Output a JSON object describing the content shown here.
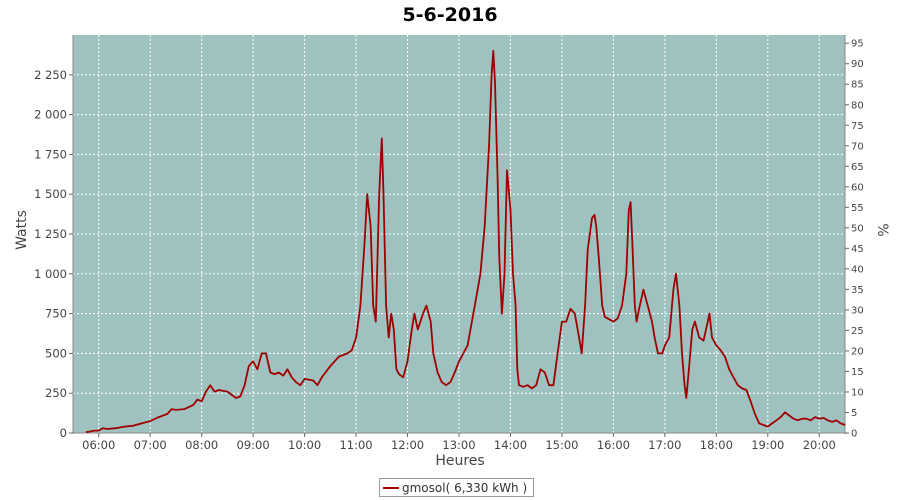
{
  "chart_data": {
    "type": "line",
    "title": "5-6-2016",
    "xlabel": "Heures",
    "ylabel": "Watts",
    "y2label": "%",
    "xlim": [
      "05:30",
      "20:30"
    ],
    "ylim": [
      0,
      2500
    ],
    "y2lim": [
      0,
      97
    ],
    "xticks": [
      "06:00",
      "07:00",
      "08:00",
      "09:00",
      "10:00",
      "11:00",
      "12:00",
      "13:00",
      "14:00",
      "15:00",
      "16:00",
      "17:00",
      "18:00",
      "19:00",
      "20:00"
    ],
    "yticks": [
      0,
      250,
      500,
      750,
      1000,
      1250,
      1500,
      1750,
      2000,
      2250
    ],
    "ytick_labels": [
      "0",
      "250",
      "500",
      "750",
      "1 000",
      "1 250",
      "1 500",
      "1 750",
      "2 000",
      "2 250"
    ],
    "y2ticks": [
      "0",
      "5",
      "10",
      "15",
      "20",
      "25",
      "30",
      "35",
      "40",
      "45",
      "50",
      "55",
      "60",
      "65",
      "70",
      "75",
      "80",
      "85",
      "90",
      "95"
    ],
    "grid": true,
    "legend_position": "bottom",
    "background": "#9fc2c1",
    "line_color": "#a00000",
    "series": [
      {
        "name": "gmosol( 6,330 kWh )",
        "points": [
          [
            "05:45",
            5
          ],
          [
            "05:55",
            15
          ],
          [
            "06:00",
            15
          ],
          [
            "06:05",
            30
          ],
          [
            "06:10",
            25
          ],
          [
            "06:20",
            30
          ],
          [
            "06:30",
            40
          ],
          [
            "06:40",
            45
          ],
          [
            "06:50",
            60
          ],
          [
            "07:00",
            75
          ],
          [
            "07:10",
            100
          ],
          [
            "07:20",
            120
          ],
          [
            "07:25",
            150
          ],
          [
            "07:30",
            145
          ],
          [
            "07:40",
            150
          ],
          [
            "07:50",
            175
          ],
          [
            "07:55",
            210
          ],
          [
            "08:00",
            200
          ],
          [
            "08:05",
            260
          ],
          [
            "08:10",
            300
          ],
          [
            "08:15",
            260
          ],
          [
            "08:20",
            270
          ],
          [
            "08:30",
            260
          ],
          [
            "08:40",
            220
          ],
          [
            "08:45",
            230
          ],
          [
            "08:50",
            300
          ],
          [
            "08:55",
            420
          ],
          [
            "09:00",
            450
          ],
          [
            "09:05",
            400
          ],
          [
            "09:10",
            500
          ],
          [
            "09:15",
            500
          ],
          [
            "09:20",
            380
          ],
          [
            "09:25",
            370
          ],
          [
            "09:30",
            380
          ],
          [
            "09:35",
            360
          ],
          [
            "09:40",
            400
          ],
          [
            "09:45",
            350
          ],
          [
            "09:50",
            320
          ],
          [
            "09:55",
            300
          ],
          [
            "10:00",
            340
          ],
          [
            "10:10",
            330
          ],
          [
            "10:15",
            300
          ],
          [
            "10:20",
            350
          ],
          [
            "10:30",
            420
          ],
          [
            "10:40",
            480
          ],
          [
            "10:50",
            500
          ],
          [
            "10:55",
            520
          ],
          [
            "11:00",
            600
          ],
          [
            "11:05",
            800
          ],
          [
            "11:10",
            1200
          ],
          [
            "11:13",
            1500
          ],
          [
            "11:17",
            1300
          ],
          [
            "11:20",
            800
          ],
          [
            "11:23",
            700
          ],
          [
            "11:27",
            1500
          ],
          [
            "11:30",
            1850
          ],
          [
            "11:32",
            1500
          ],
          [
            "11:35",
            800
          ],
          [
            "11:38",
            600
          ],
          [
            "11:41",
            750
          ],
          [
            "11:44",
            650
          ],
          [
            "11:47",
            400
          ],
          [
            "11:50",
            370
          ],
          [
            "11:55",
            350
          ],
          [
            "12:00",
            450
          ],
          [
            "12:05",
            650
          ],
          [
            "12:08",
            750
          ],
          [
            "12:12",
            650
          ],
          [
            "12:18",
            750
          ],
          [
            "12:22",
            800
          ],
          [
            "12:27",
            700
          ],
          [
            "12:30",
            500
          ],
          [
            "12:35",
            380
          ],
          [
            "12:40",
            320
          ],
          [
            "12:45",
            300
          ],
          [
            "12:50",
            320
          ],
          [
            "12:55",
            380
          ],
          [
            "13:00",
            450
          ],
          [
            "13:05",
            500
          ],
          [
            "13:10",
            550
          ],
          [
            "13:15",
            700
          ],
          [
            "13:20",
            850
          ],
          [
            "13:25",
            1000
          ],
          [
            "13:30",
            1300
          ],
          [
            "13:35",
            1800
          ],
          [
            "13:38",
            2250
          ],
          [
            "13:40",
            2400
          ],
          [
            "13:42",
            2200
          ],
          [
            "13:45",
            1600
          ],
          [
            "13:47",
            1100
          ],
          [
            "13:50",
            750
          ],
          [
            "13:53",
            1000
          ],
          [
            "13:56",
            1650
          ],
          [
            "14:00",
            1400
          ],
          [
            "14:03",
            1000
          ],
          [
            "14:06",
            800
          ],
          [
            "14:08",
            400
          ],
          [
            "14:10",
            300
          ],
          [
            "14:15",
            290
          ],
          [
            "14:20",
            300
          ],
          [
            "14:25",
            280
          ],
          [
            "14:30",
            300
          ],
          [
            "14:35",
            400
          ],
          [
            "14:40",
            380
          ],
          [
            "14:45",
            300
          ],
          [
            "14:50",
            300
          ],
          [
            "14:55",
            500
          ],
          [
            "15:00",
            700
          ],
          [
            "15:05",
            700
          ],
          [
            "15:10",
            780
          ],
          [
            "15:15",
            750
          ],
          [
            "15:20",
            600
          ],
          [
            "15:23",
            500
          ],
          [
            "15:27",
            800
          ],
          [
            "15:30",
            1150
          ],
          [
            "15:35",
            1350
          ],
          [
            "15:38",
            1370
          ],
          [
            "15:40",
            1300
          ],
          [
            "15:43",
            1100
          ],
          [
            "15:47",
            800
          ],
          [
            "15:50",
            730
          ],
          [
            "16:00",
            700
          ],
          [
            "16:05",
            720
          ],
          [
            "16:10",
            800
          ],
          [
            "16:15",
            1000
          ],
          [
            "16:18",
            1400
          ],
          [
            "16:20",
            1450
          ],
          [
            "16:22",
            1200
          ],
          [
            "16:25",
            800
          ],
          [
            "16:27",
            700
          ],
          [
            "16:30",
            780
          ],
          [
            "16:35",
            900
          ],
          [
            "16:40",
            800
          ],
          [
            "16:45",
            700
          ],
          [
            "16:48",
            600
          ],
          [
            "16:52",
            500
          ],
          [
            "16:57",
            500
          ],
          [
            "17:00",
            550
          ],
          [
            "17:05",
            600
          ],
          [
            "17:10",
            900
          ],
          [
            "17:13",
            1000
          ],
          [
            "17:17",
            800
          ],
          [
            "17:20",
            500
          ],
          [
            "17:23",
            300
          ],
          [
            "17:25",
            220
          ],
          [
            "17:28",
            400
          ],
          [
            "17:32",
            650
          ],
          [
            "17:35",
            700
          ],
          [
            "17:40",
            600
          ],
          [
            "17:45",
            580
          ],
          [
            "17:50",
            700
          ],
          [
            "17:52",
            750
          ],
          [
            "17:55",
            600
          ],
          [
            "18:00",
            550
          ],
          [
            "18:05",
            520
          ],
          [
            "18:10",
            480
          ],
          [
            "18:15",
            400
          ],
          [
            "18:20",
            350
          ],
          [
            "18:25",
            300
          ],
          [
            "18:30",
            280
          ],
          [
            "18:35",
            270
          ],
          [
            "18:40",
            200
          ],
          [
            "18:45",
            120
          ],
          [
            "18:50",
            60
          ],
          [
            "18:55",
            50
          ],
          [
            "19:00",
            40
          ],
          [
            "19:05",
            60
          ],
          [
            "19:10",
            80
          ],
          [
            "19:15",
            100
          ],
          [
            "19:20",
            130
          ],
          [
            "19:25",
            110
          ],
          [
            "19:30",
            90
          ],
          [
            "19:35",
            80
          ],
          [
            "19:40",
            90
          ],
          [
            "19:45",
            90
          ],
          [
            "19:50",
            80
          ],
          [
            "19:55",
            100
          ],
          [
            "20:00",
            90
          ],
          [
            "20:05",
            95
          ],
          [
            "20:10",
            80
          ],
          [
            "20:15",
            70
          ],
          [
            "20:20",
            80
          ],
          [
            "20:25",
            60
          ],
          [
            "20:30",
            50
          ]
        ]
      }
    ]
  }
}
